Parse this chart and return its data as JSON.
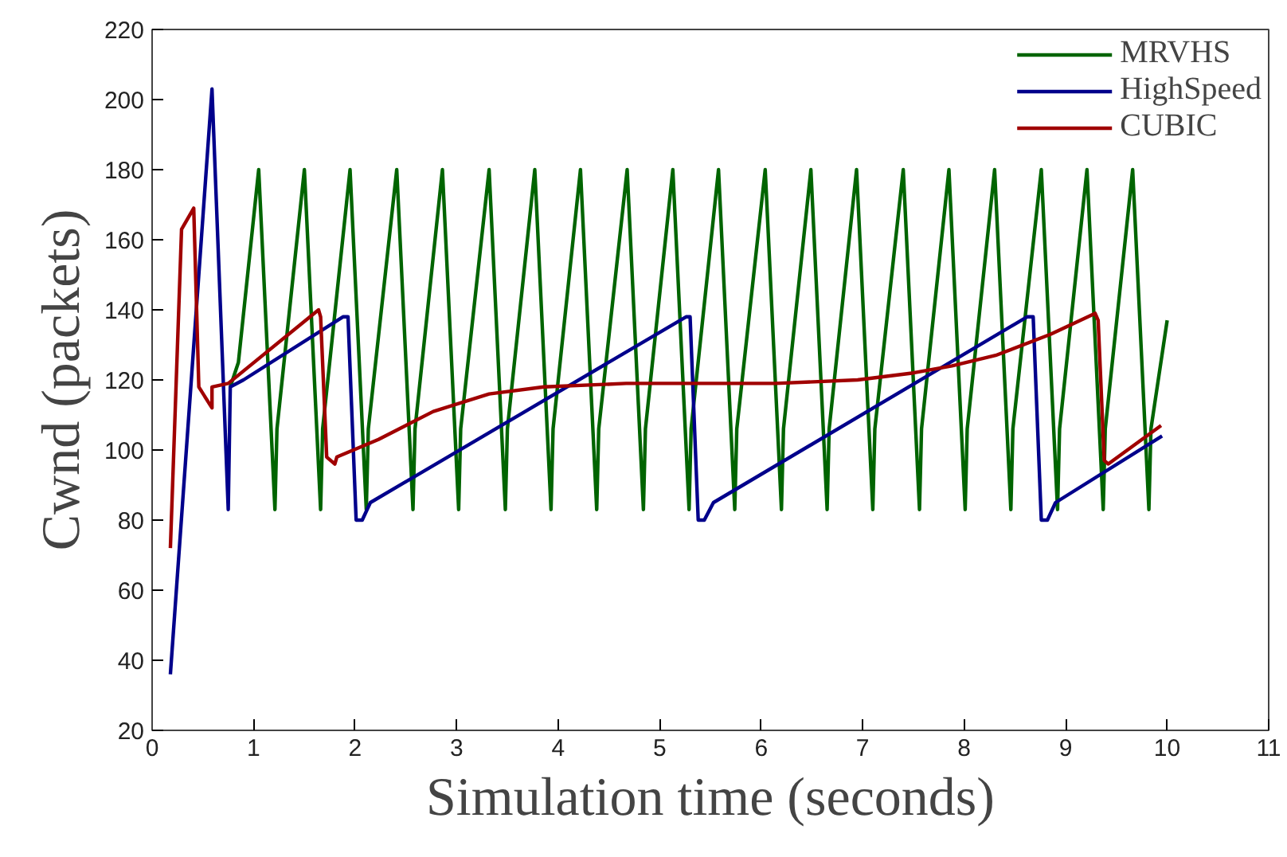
{
  "chart_data": {
    "type": "line",
    "xlabel": "Simulation time (seconds)",
    "ylabel": "Cwnd (packets)",
    "xlim": [
      0,
      11
    ],
    "ylim": [
      20,
      220
    ],
    "xticks": [
      0,
      1,
      2,
      3,
      4,
      5,
      6,
      7,
      8,
      9,
      10,
      11
    ],
    "yticks": [
      20,
      40,
      60,
      80,
      100,
      120,
      140,
      160,
      180,
      200,
      220
    ],
    "grid": false,
    "legend": "top right",
    "marker": "none",
    "line_style": "solid",
    "series": [
      {
        "name": "MRVHS",
        "color": "#006400",
        "x": [
          0.77,
          0.85,
          1.05,
          1.21,
          1.23,
          1.5,
          1.66,
          1.68,
          1.95,
          2.11,
          2.13,
          2.41,
          2.57,
          2.59,
          2.86,
          3.02,
          3.04,
          3.32,
          3.48,
          3.5,
          3.77,
          3.93,
          3.95,
          4.22,
          4.38,
          4.4,
          4.68,
          4.84,
          4.86,
          5.13,
          5.29,
          5.31,
          5.58,
          5.74,
          5.76,
          6.04,
          6.2,
          6.22,
          6.49,
          6.65,
          6.67,
          6.94,
          7.1,
          7.12,
          7.4,
          7.56,
          7.58,
          7.85,
          8.01,
          8.03,
          8.3,
          8.46,
          8.48,
          8.76,
          8.92,
          8.94,
          9.21,
          9.37,
          9.39,
          9.66,
          9.82,
          9.84,
          10.0
        ],
        "values": [
          118,
          125,
          180,
          83,
          106,
          180,
          83,
          106,
          180,
          83,
          106,
          180,
          83,
          106,
          180,
          83,
          106,
          180,
          83,
          106,
          180,
          83,
          106,
          180,
          83,
          106,
          180,
          83,
          106,
          180,
          83,
          106,
          180,
          83,
          106,
          180,
          83,
          106,
          180,
          83,
          106,
          180,
          83,
          106,
          180,
          83,
          106,
          180,
          83,
          106,
          180,
          83,
          106,
          180,
          83,
          106,
          180,
          83,
          106,
          180,
          83,
          106,
          137
        ]
      },
      {
        "name": "HighSpeed",
        "color": "#00008b",
        "x": [
          0.18,
          0.59,
          0.75,
          0.77,
          0.9,
          1.88,
          1.93,
          2.01,
          2.07,
          2.15,
          5.26,
          5.3,
          5.38,
          5.44,
          5.53,
          8.62,
          8.68,
          8.76,
          8.82,
          8.9,
          9.95
        ],
        "values": [
          36,
          203,
          83,
          118,
          120,
          138,
          138,
          80,
          80,
          85,
          138,
          138,
          80,
          80,
          85,
          138,
          138,
          80,
          80,
          85,
          104
        ]
      },
      {
        "name": "CUBIC",
        "color": "#a00000",
        "x": [
          0.18,
          0.29,
          0.41,
          0.46,
          0.59,
          0.59,
          0.75,
          1.64,
          1.66,
          1.72,
          1.8,
          1.82,
          2.23,
          2.77,
          3.32,
          3.86,
          4.67,
          6.14,
          6.95,
          7.5,
          7.88,
          8.31,
          8.85,
          9.29,
          9.32,
          9.38,
          9.42,
          9.56,
          9.94
        ],
        "values": [
          72,
          163,
          169,
          118,
          112,
          118,
          119,
          140,
          138,
          98,
          96,
          98,
          103,
          111,
          116,
          118,
          119,
          119,
          120,
          122,
          124,
          127,
          133,
          139,
          137,
          97,
          96,
          99,
          107
        ]
      }
    ]
  }
}
